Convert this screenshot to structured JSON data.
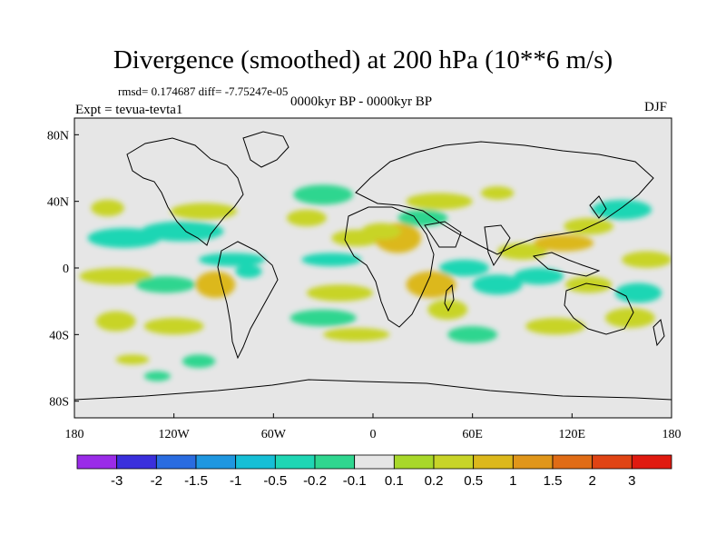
{
  "title": "Divergence (smoothed) at 200 hPa (10**6 m/s)",
  "stats_text": "rmsd= 0.174687 diff= -7.75247e-05",
  "experiment": "Expt = tevua-tevta1",
  "period": "0000kyr BP - 0000kyr BP",
  "season": "DJF",
  "map": {
    "projection": "cylindrical equidistant",
    "lon_range": [
      -180,
      180
    ],
    "lat_range": [
      -90,
      90
    ],
    "background_color": "#e6e6e6",
    "x_ticks": [
      {
        "lon": -180,
        "label": "180"
      },
      {
        "lon": -120,
        "label": "120W"
      },
      {
        "lon": -60,
        "label": "60W"
      },
      {
        "lon": 0,
        "label": "0"
      },
      {
        "lon": 60,
        "label": "60E"
      },
      {
        "lon": 120,
        "label": "120E"
      },
      {
        "lon": 180,
        "label": "180"
      }
    ],
    "y_ticks": [
      {
        "lat": 80,
        "label": "80N"
      },
      {
        "lat": 40,
        "label": "40N"
      },
      {
        "lat": 0,
        "label": "0"
      },
      {
        "lat": -40,
        "label": "40S"
      },
      {
        "lat": -80,
        "label": "80S"
      }
    ]
  },
  "colorbar": {
    "colors": [
      "#9a2be8",
      "#3a2fdc",
      "#2a6ce0",
      "#1f97e0",
      "#16bfd6",
      "#1fd6b4",
      "#2fd68f",
      "#e6e6e6",
      "#a8d82a",
      "#c8d428",
      "#dcb81c",
      "#e0961a",
      "#e06c16",
      "#e04414",
      "#e01a10"
    ],
    "labels": [
      "-3",
      "-2",
      "-1.5",
      "-1",
      "-0.5",
      "-0.2",
      "-0.1",
      "0.1",
      "0.2",
      "0.5",
      "1",
      "1.5",
      "2",
      "3"
    ]
  },
  "field_regions": [
    {
      "lon": -150,
      "lat": 18,
      "rx": 22,
      "ry": 6,
      "value": -0.3
    },
    {
      "lon": -115,
      "lat": 22,
      "rx": 25,
      "ry": 6,
      "value": -0.3
    },
    {
      "lon": -160,
      "lat": 36,
      "rx": 10,
      "ry": 5,
      "value": 0.2
    },
    {
      "lon": -102,
      "lat": 34,
      "rx": 20,
      "ry": 5,
      "value": 0.2
    },
    {
      "lon": -155,
      "lat": -5,
      "rx": 22,
      "ry": 5,
      "value": 0.2
    },
    {
      "lon": -125,
      "lat": -10,
      "rx": 18,
      "ry": 5,
      "value": -0.2
    },
    {
      "lon": -95,
      "lat": -10,
      "rx": 12,
      "ry": 8,
      "value": 0.5
    },
    {
      "lon": -75,
      "lat": -2,
      "rx": 8,
      "ry": 4,
      "value": -0.5
    },
    {
      "lon": -85,
      "lat": 5,
      "rx": 20,
      "ry": 4,
      "value": -0.3
    },
    {
      "lon": -155,
      "lat": -32,
      "rx": 12,
      "ry": 6,
      "value": 0.2
    },
    {
      "lon": -120,
      "lat": -35,
      "rx": 18,
      "ry": 5,
      "value": 0.2
    },
    {
      "lon": -105,
      "lat": -56,
      "rx": 10,
      "ry": 4,
      "value": -0.2
    },
    {
      "lon": -145,
      "lat": -55,
      "rx": 10,
      "ry": 3,
      "value": 0.2
    },
    {
      "lon": -30,
      "lat": 44,
      "rx": 18,
      "ry": 6,
      "value": -0.2
    },
    {
      "lon": -40,
      "lat": 30,
      "rx": 12,
      "ry": 5,
      "value": 0.2
    },
    {
      "lon": -10,
      "lat": 18,
      "rx": 15,
      "ry": 5,
      "value": 0.3
    },
    {
      "lon": -25,
      "lat": 5,
      "rx": 18,
      "ry": 4,
      "value": -0.3
    },
    {
      "lon": -20,
      "lat": -15,
      "rx": 20,
      "ry": 5,
      "value": 0.3
    },
    {
      "lon": -30,
      "lat": -30,
      "rx": 20,
      "ry": 5,
      "value": -0.2
    },
    {
      "lon": -10,
      "lat": -40,
      "rx": 20,
      "ry": 4,
      "value": 0.3
    },
    {
      "lon": 15,
      "lat": 18,
      "rx": 14,
      "ry": 9,
      "value": 0.8
    },
    {
      "lon": 5,
      "lat": 22,
      "rx": 12,
      "ry": 5,
      "value": 0.3
    },
    {
      "lon": 30,
      "lat": 30,
      "rx": 15,
      "ry": 5,
      "value": -0.2
    },
    {
      "lon": 40,
      "lat": 40,
      "rx": 20,
      "ry": 5,
      "value": 0.3
    },
    {
      "lon": 75,
      "lat": 45,
      "rx": 10,
      "ry": 4,
      "value": 0.2
    },
    {
      "lon": 35,
      "lat": -10,
      "rx": 15,
      "ry": 8,
      "value": 0.6
    },
    {
      "lon": 45,
      "lat": -25,
      "rx": 12,
      "ry": 6,
      "value": 0.4
    },
    {
      "lon": 55,
      "lat": 0,
      "rx": 15,
      "ry": 5,
      "value": -0.4
    },
    {
      "lon": 75,
      "lat": -10,
      "rx": 15,
      "ry": 6,
      "value": -0.3
    },
    {
      "lon": 90,
      "lat": 10,
      "rx": 15,
      "ry": 5,
      "value": 0.3
    },
    {
      "lon": 115,
      "lat": 15,
      "rx": 18,
      "ry": 5,
      "value": 0.8
    },
    {
      "lon": 130,
      "lat": 25,
      "rx": 15,
      "ry": 5,
      "value": 0.4
    },
    {
      "lon": 150,
      "lat": 35,
      "rx": 18,
      "ry": 6,
      "value": -0.3
    },
    {
      "lon": 100,
      "lat": -5,
      "rx": 15,
      "ry": 5,
      "value": -0.3
    },
    {
      "lon": 130,
      "lat": -10,
      "rx": 14,
      "ry": 5,
      "value": 0.3
    },
    {
      "lon": 160,
      "lat": -15,
      "rx": 14,
      "ry": 6,
      "value": -0.3
    },
    {
      "lon": 165,
      "lat": 5,
      "rx": 15,
      "ry": 5,
      "value": 0.2
    },
    {
      "lon": 110,
      "lat": -35,
      "rx": 18,
      "ry": 5,
      "value": 0.2
    },
    {
      "lon": 155,
      "lat": -30,
      "rx": 15,
      "ry": 6,
      "value": 0.3
    },
    {
      "lon": 60,
      "lat": -40,
      "rx": 15,
      "ry": 5,
      "value": -0.2
    },
    {
      "lon": -130,
      "lat": -65,
      "rx": 8,
      "ry": 3,
      "value": -0.2
    }
  ]
}
